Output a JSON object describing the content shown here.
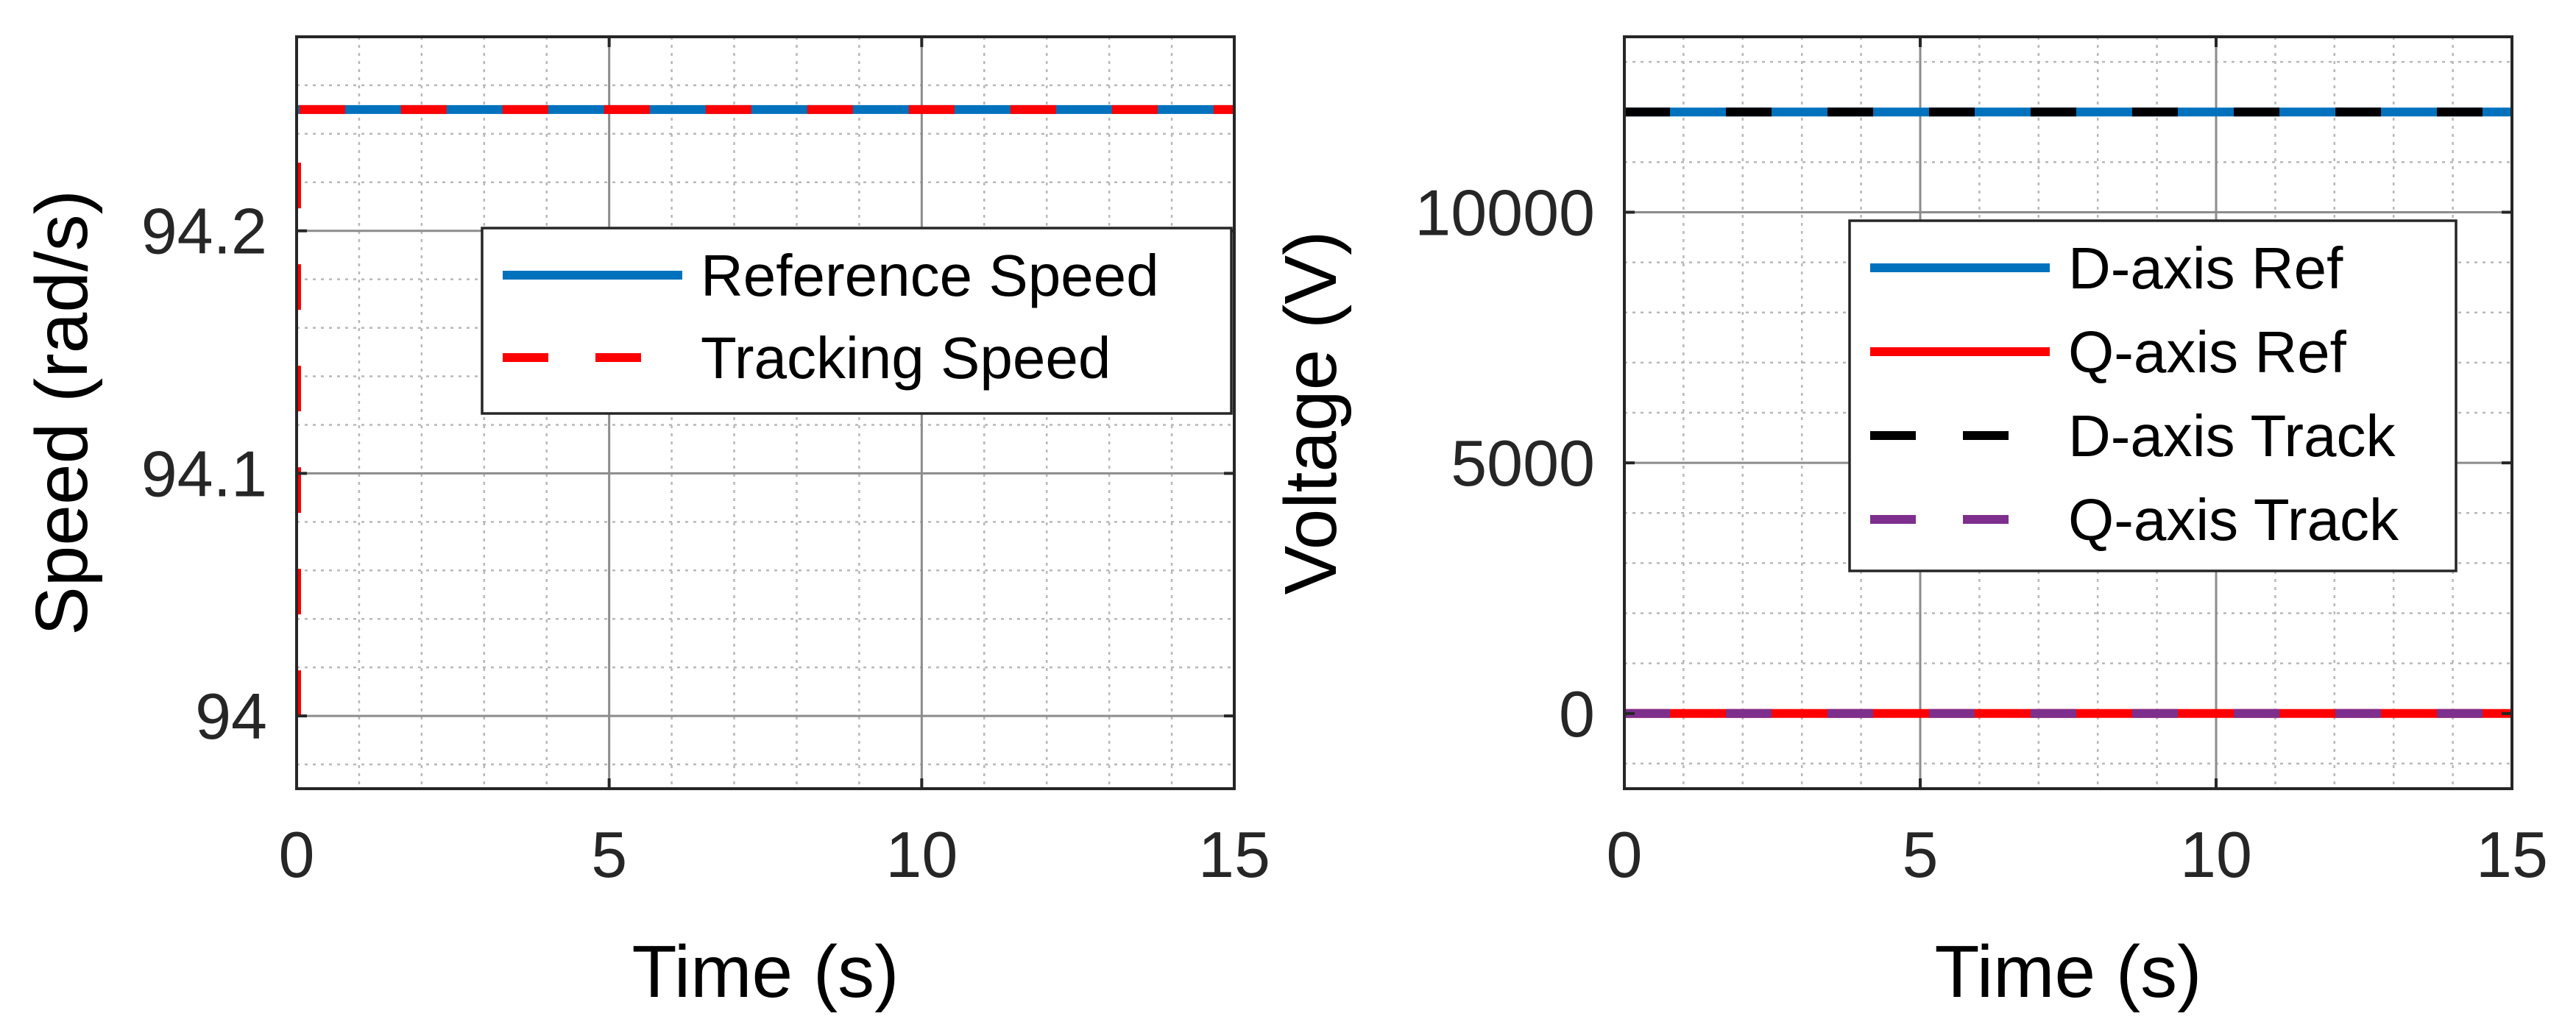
{
  "chart_data": [
    {
      "type": "line",
      "xlabel": "Time (s)",
      "ylabel": "Speed (rad/s)",
      "xlim": [
        0,
        15
      ],
      "ylim": [
        93.97,
        94.28
      ],
      "xticks": [
        0,
        5,
        10,
        15
      ],
      "yticks": [
        94,
        94.1,
        94.2
      ],
      "grid": true,
      "minor_grid": true,
      "legend_position": "center-right",
      "series": [
        {
          "name": "Reference Speed",
          "color": "#0072BD",
          "style": "solid",
          "x": [
            0,
            15
          ],
          "y": [
            94.25,
            94.25
          ]
        },
        {
          "name": "Tracking Speed",
          "color": "#FF0000",
          "style": "dashed",
          "x": [
            0,
            0,
            15
          ],
          "y": [
            94.0,
            94.25,
            94.25
          ]
        }
      ]
    },
    {
      "type": "line",
      "xlabel": "Time (s)",
      "ylabel": "Voltage (V)",
      "xlim": [
        0,
        15
      ],
      "ylim": [
        -1500,
        13500
      ],
      "xticks": [
        0,
        5,
        10,
        15
      ],
      "yticks": [
        0,
        5000,
        10000
      ],
      "grid": true,
      "minor_grid": true,
      "legend_position": "center-right",
      "series": [
        {
          "name": "D-axis Ref",
          "color": "#0072BD",
          "style": "solid",
          "x": [
            0,
            15
          ],
          "y": [
            12000,
            12000
          ]
        },
        {
          "name": "Q-axis Ref",
          "color": "#FF0000",
          "style": "solid",
          "x": [
            0,
            15
          ],
          "y": [
            0,
            0
          ]
        },
        {
          "name": "D-axis Track",
          "color": "#000000",
          "style": "dashed",
          "x": [
            0,
            15
          ],
          "y": [
            12000,
            12000
          ]
        },
        {
          "name": "Q-axis Track",
          "color": "#7E2F8E",
          "style": "dashed",
          "x": [
            0,
            15
          ],
          "y": [
            0,
            0
          ]
        }
      ]
    }
  ]
}
